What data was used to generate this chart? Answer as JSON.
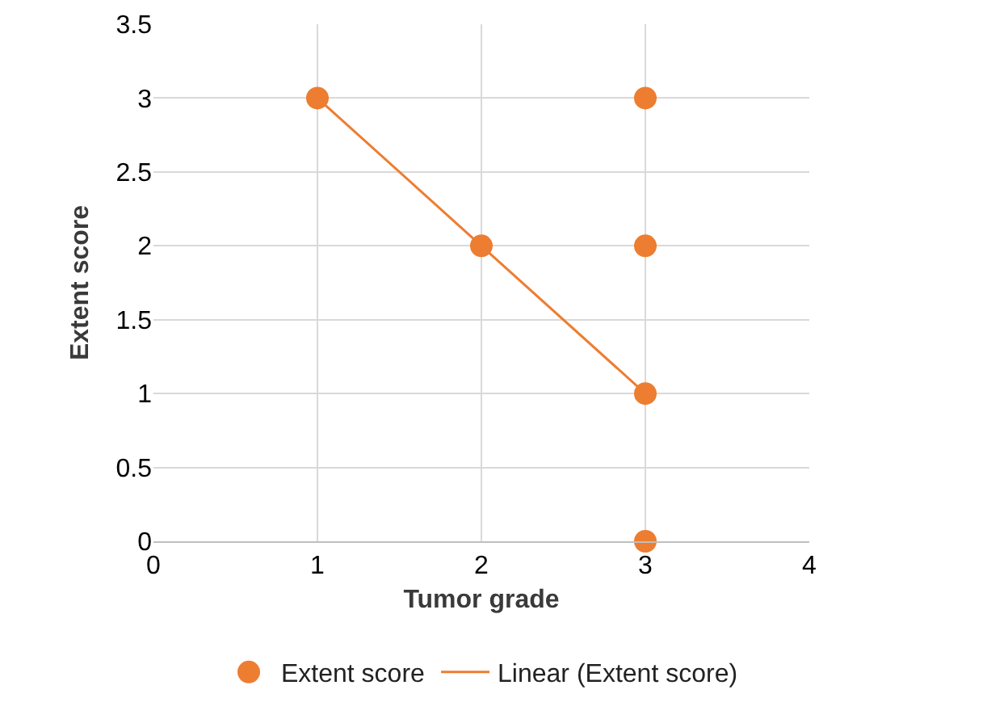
{
  "chart_data": {
    "type": "scatter",
    "xlabel": "Tumor grade",
    "ylabel": "Extent score",
    "x": [
      1,
      2,
      3,
      3,
      3,
      3
    ],
    "series": [
      {
        "name": "Extent score",
        "color": "#ed7d31",
        "values": [
          3,
          2,
          3,
          2,
          1,
          0
        ]
      },
      {
        "name": "Linear (Extent score)",
        "type": "line",
        "color": "#ed7d31",
        "x": [
          1,
          2,
          3
        ],
        "values": [
          3,
          2,
          1
        ],
        "marker": "none"
      }
    ],
    "xlim": [
      0,
      4
    ],
    "xticks": [
      0,
      1,
      2,
      3,
      4
    ],
    "ylim": [
      0,
      3.5
    ],
    "yticks": [
      0,
      0.5,
      1,
      1.5,
      2,
      2.5,
      3,
      3.5
    ],
    "grid": true,
    "legend": "bottom",
    "marker": "circle",
    "line_style": "solid"
  }
}
